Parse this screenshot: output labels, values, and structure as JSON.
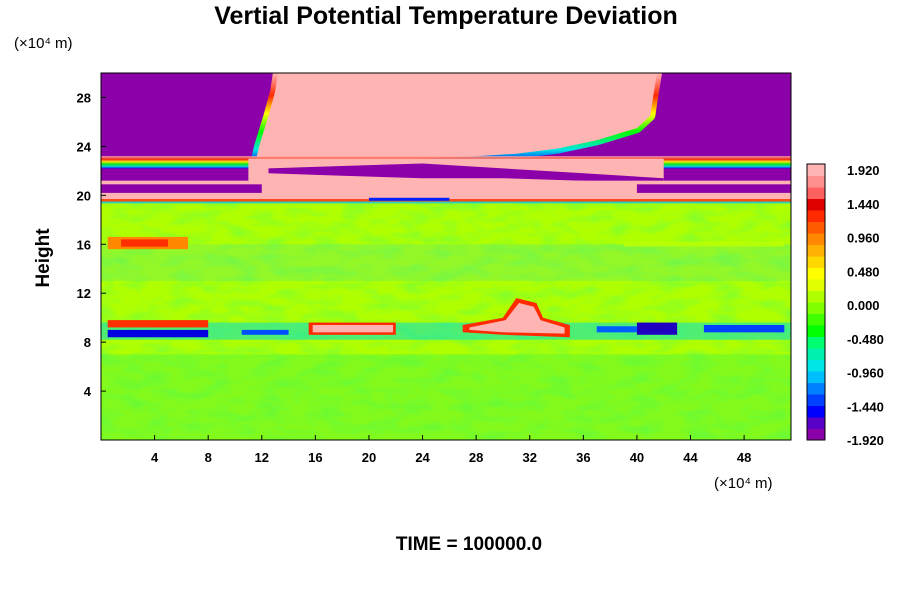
{
  "chart_data": {
    "type": "heatmap",
    "title": "Vertial Potential Temperature Deviation",
    "ylabel": "Height",
    "xunit": "(×10⁴ m)",
    "yunit": "(×10⁴ m)",
    "annotation": "TIME = 100000.0",
    "xlim": [
      0,
      51.5
    ],
    "ylim": [
      0,
      30
    ],
    "xticks": [
      4,
      8,
      12,
      16,
      20,
      24,
      28,
      32,
      36,
      40,
      44,
      48
    ],
    "yticks": [
      4,
      8,
      12,
      16,
      20,
      24,
      28
    ],
    "colorbar": {
      "range": [
        -1.92,
        1.92
      ],
      "labels": [
        "1.920",
        "1.440",
        "0.960",
        "0.480",
        "0.000",
        "-0.480",
        "-0.960",
        "-1.440",
        "-1.920"
      ],
      "levels": [
        "#8b00a8",
        "#5a00c8",
        "#0000ff",
        "#0040ff",
        "#0080ff",
        "#00bfff",
        "#00e5e5",
        "#00f0b0",
        "#00ff70",
        "#00ff00",
        "#40ff00",
        "#80ff00",
        "#b0ff00",
        "#e0ff00",
        "#ffff00",
        "#ffd800",
        "#ffb000",
        "#ff8800",
        "#ff5a00",
        "#ff2a00",
        "#e00000",
        "#ff6060",
        "#ff9090",
        "#ffb4b4"
      ]
    },
    "regions": [
      {
        "name": "upper cold-anomaly zone",
        "value": -1.92,
        "x": [
          0,
          51.5
        ],
        "y": [
          20,
          30
        ]
      },
      {
        "name": "upper warm-anomaly plume",
        "value": 1.92,
        "x": [
          13,
          42
        ],
        "y": [
          20,
          30
        ]
      },
      {
        "name": "warm layer near 20",
        "value": 1.92,
        "x": [
          0,
          51.5
        ],
        "y": [
          19.5,
          21
        ]
      },
      {
        "name": "mid-level band near 8-9",
        "value": 0.0,
        "x": [
          0,
          51.5
        ],
        "y": [
          7.5,
          10
        ]
      },
      {
        "name": "warm patch",
        "value": 1.92,
        "x": [
          15.5,
          22
        ],
        "y": [
          8.5,
          9.5
        ]
      },
      {
        "name": "warm patch",
        "value": 1.92,
        "x": [
          27,
          35
        ],
        "y": [
          8.5,
          11.5
        ]
      },
      {
        "name": "cold patch",
        "value": -1.92,
        "x": [
          40,
          43
        ],
        "y": [
          8.5,
          9.5
        ]
      },
      {
        "name": "lower field",
        "value": 0.0,
        "x": [
          0,
          51.5
        ],
        "y": [
          0,
          7.5
        ]
      }
    ]
  }
}
